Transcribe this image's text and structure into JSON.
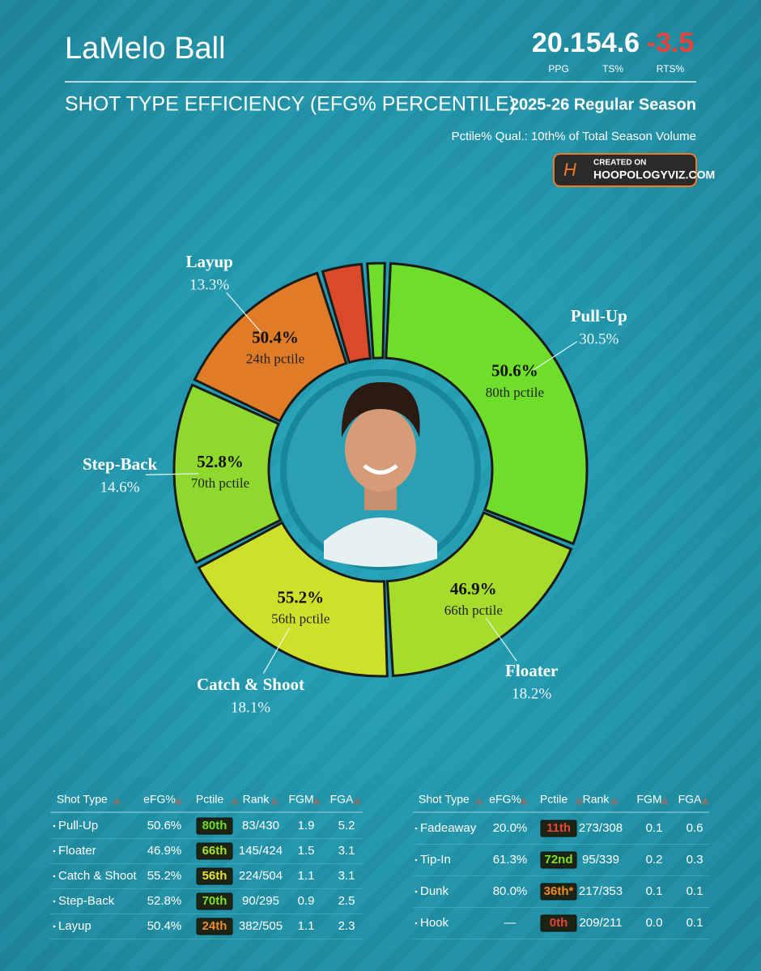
{
  "header": {
    "player": "LaMelo Ball",
    "stats": [
      {
        "value": "20.1",
        "label": "PPG"
      },
      {
        "value": "54.6",
        "label": "TS%"
      },
      {
        "value": "-3.5",
        "label": "RTS%"
      }
    ],
    "subtitle": "SHOT TYPE EFFICIENCY (EFG% PERCENTILE)",
    "season": "2025-26 Regular Season",
    "qualifier": "Pctile% Qual.: 10th% of Total Season Volume",
    "badge": {
      "logo": "H",
      "created": "CREATED ON",
      "site": "HOOPOLOGYVIZ.COM"
    }
  },
  "chart_data": {
    "type": "donut",
    "categories": [
      "Pull-Up",
      "Floater",
      "Catch & Shoot",
      "Step-Back",
      "Layup",
      null,
      null
    ],
    "values": [
      30.5,
      18.2,
      18.1,
      14.6,
      13.3,
      3.5,
      1.8
    ],
    "value_labels": [
      "30.5%",
      "18.2%",
      "18.1%",
      "14.6%",
      "13.3%",
      null,
      null
    ],
    "efg_labels": [
      "50.6%",
      "46.9%",
      "55.2%",
      "52.8%",
      "50.4%",
      null,
      null
    ],
    "pctile_labels": [
      "80th pctile",
      "66th pctile",
      "56th pctile",
      "70th pctile",
      "24th pctile",
      null,
      null
    ],
    "colors": [
      "#6ede2a",
      "#a6dc2c",
      "#cfe02a",
      "#8fd92e",
      "#e07b27",
      "#d9492a",
      "#6ede2a"
    ]
  },
  "tables": [
    {
      "columns": [
        "Shot Type",
        "eFG%",
        "Pctile",
        "Rank",
        "FGM",
        "FGA"
      ],
      "rows": [
        [
          "Pull-Up",
          "50.6%",
          "80th",
          "83/430",
          "1.9",
          "5.2"
        ],
        [
          "Floater",
          "46.9%",
          "66th",
          "145/424",
          "1.5",
          "3.1"
        ],
        [
          "Catch & Shoot",
          "55.2%",
          "56th",
          "224/504",
          "1.1",
          "3.1"
        ],
        [
          "Step-Back",
          "52.8%",
          "70th",
          "90/295",
          "0.9",
          "2.5"
        ],
        [
          "Layup",
          "50.4%",
          "24th",
          "382/505",
          "1.1",
          "2.3"
        ]
      ],
      "badge_colors": [
        "#6ede2a",
        "#a6e030",
        "#e5e13a",
        "#7fe02e",
        "#f08a2a"
      ]
    },
    {
      "columns": [
        "Shot Type",
        "eFG%",
        "Pctile",
        "Rank",
        "FGM",
        "FGA"
      ],
      "rows": [
        [
          "Fadeaway",
          "20.0%",
          "11th",
          "273/308",
          "0.1",
          "0.6"
        ],
        [
          "Tip-In",
          "61.3%",
          "72nd",
          "95/339",
          "0.2",
          "0.3"
        ],
        [
          "Dunk",
          "80.0%",
          "36th*",
          "217/353",
          "0.1",
          "0.1"
        ],
        [
          "Hook",
          "—",
          "0th",
          "209/211",
          "0.0",
          "0.1"
        ]
      ],
      "badge_colors": [
        "#e8443a",
        "#7fe02e",
        "#f08a2a",
        "#e8443a"
      ]
    }
  ]
}
